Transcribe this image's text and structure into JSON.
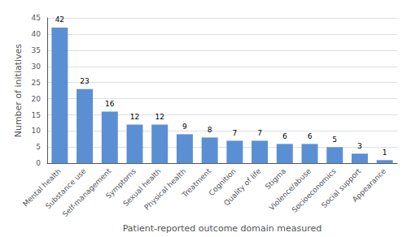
{
  "chart_data": {
    "type": "bar",
    "categories": [
      "Mental health",
      "Substance use",
      "Self-management",
      "Symptoms",
      "Sexual health",
      "Physical health",
      "Treatment",
      "Cognition",
      "Quality of life",
      "Stigma",
      "Violence/abuse",
      "Socioeconomics",
      "Social support",
      "Appearance"
    ],
    "values": [
      42,
      23,
      16,
      12,
      12,
      9,
      8,
      7,
      7,
      6,
      6,
      5,
      3,
      1
    ],
    "color": "#5B8FD4",
    "xlabel": "Patient-reported outcome domain measured",
    "ylabel": "Number of initiatives",
    "ylim": [
      0,
      45
    ],
    "yticks": [
      0,
      5,
      10,
      15,
      20,
      25,
      30,
      35,
      40,
      45
    ],
    "grid": true,
    "data_labels": true
  }
}
